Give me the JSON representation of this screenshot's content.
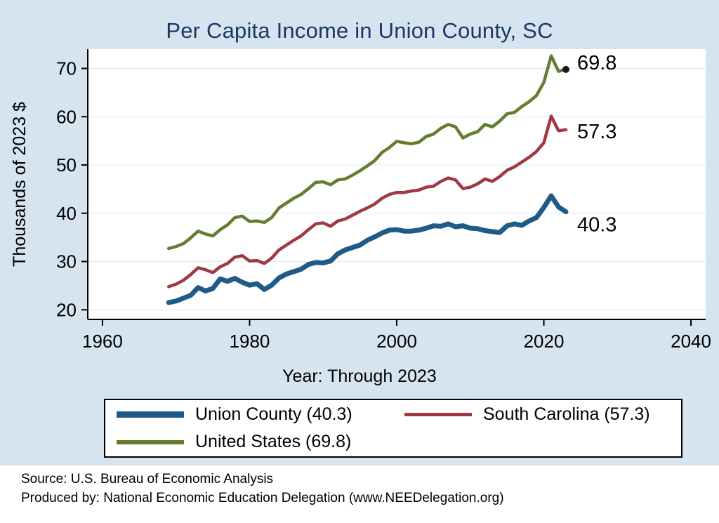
{
  "title": "Per Capita Income in Union County, SC",
  "x_axis_title": "Year: Through 2023",
  "y_axis_title": "Thousands of 2023 $",
  "footer": {
    "source": "Source: U.S. Bureau of Economic Analysis",
    "produced_by": "Produced by: National Economic Education Delegation (www.NEEDelegation.org)"
  },
  "colors": {
    "background": "#d6e4f0",
    "plot_background": "#ffffff",
    "grid": "#e3eaf0",
    "title_text": "#1c3667",
    "union_county": "#1f5b87",
    "south_carolina": "#9d3a42",
    "united_states": "#647d2e"
  },
  "legend": {
    "items": [
      {
        "label": "Union County (40.3)",
        "color": "#1f5b87",
        "thickness": 9
      },
      {
        "label": "South Carolina (57.3)",
        "color": "#9d3a42",
        "thickness": 5
      },
      {
        "label": "United States (69.8)",
        "color": "#647d2e",
        "thickness": 6
      }
    ]
  },
  "chart_data": {
    "type": "line",
    "title": "Per Capita Income in Union County, SC",
    "xlabel": "Year: Through 2023",
    "ylabel": "Thousands of 2023 $",
    "xlim": [
      1958,
      2042
    ],
    "ylim": [
      18,
      74
    ],
    "x_ticks": [
      1960,
      1980,
      2000,
      2020,
      2040
    ],
    "y_ticks": [
      20,
      30,
      40,
      50,
      60,
      70
    ],
    "grid": true,
    "grid_color": "#e3eaf0",
    "legend_position": "bottom",
    "x": [
      1969,
      1970,
      1971,
      1972,
      1973,
      1974,
      1975,
      1976,
      1977,
      1978,
      1979,
      1980,
      1981,
      1982,
      1983,
      1984,
      1985,
      1986,
      1987,
      1988,
      1989,
      1990,
      1991,
      1992,
      1993,
      1994,
      1995,
      1996,
      1997,
      1998,
      1999,
      2000,
      2001,
      2002,
      2003,
      2004,
      2005,
      2006,
      2007,
      2008,
      2009,
      2010,
      2011,
      2012,
      2013,
      2014,
      2015,
      2016,
      2017,
      2018,
      2019,
      2020,
      2021,
      2022,
      2023
    ],
    "series": [
      {
        "id": "union-county",
        "name": "Union County",
        "color": "#1f5b87",
        "width": 7,
        "end_label": "40.3",
        "label_dy": 28,
        "end_marker": false,
        "values": [
          21.5,
          21.8,
          22.4,
          23.0,
          24.6,
          23.9,
          24.4,
          26.4,
          25.9,
          26.5,
          25.7,
          25.1,
          25.4,
          24.2,
          25.1,
          26.6,
          27.4,
          27.9,
          28.4,
          29.4,
          29.8,
          29.7,
          30.1,
          31.6,
          32.4,
          32.9,
          33.4,
          34.4,
          35.1,
          35.9,
          36.5,
          36.6,
          36.3,
          36.3,
          36.5,
          36.9,
          37.4,
          37.3,
          37.8,
          37.2,
          37.4,
          36.9,
          36.8,
          36.4,
          36.2,
          36.0,
          37.4,
          37.8,
          37.5,
          38.4,
          39.1,
          41.2,
          43.6,
          41.3,
          40.3
        ]
      },
      {
        "id": "south-carolina",
        "name": "South Carolina",
        "color": "#9d3a42",
        "width": 4.5,
        "end_label": "57.3",
        "label_dy": 12,
        "end_marker": false,
        "values": [
          24.8,
          25.3,
          26.1,
          27.3,
          28.7,
          28.3,
          27.7,
          28.9,
          29.6,
          30.9,
          31.2,
          30.1,
          30.2,
          29.6,
          30.7,
          32.4,
          33.4,
          34.4,
          35.3,
          36.6,
          37.8,
          38.0,
          37.3,
          38.4,
          38.8,
          39.6,
          40.4,
          41.1,
          41.9,
          43.1,
          43.9,
          44.3,
          44.3,
          44.6,
          44.8,
          45.4,
          45.6,
          46.6,
          47.3,
          46.9,
          45.1,
          45.4,
          46.1,
          47.1,
          46.6,
          47.6,
          48.9,
          49.6,
          50.6,
          51.6,
          52.8,
          54.6,
          60.1,
          57.1,
          57.3
        ]
      },
      {
        "id": "united-states",
        "name": "United States",
        "color": "#647d2e",
        "width": 4.5,
        "end_label": "69.8",
        "label_dy": 0,
        "end_marker": true,
        "values": [
          32.7,
          33.1,
          33.7,
          34.9,
          36.3,
          35.7,
          35.3,
          36.6,
          37.6,
          39.1,
          39.4,
          38.3,
          38.4,
          38.1,
          39.1,
          41.1,
          42.1,
          43.1,
          43.9,
          45.1,
          46.4,
          46.5,
          45.9,
          46.9,
          47.1,
          47.9,
          48.8,
          49.8,
          50.9,
          52.6,
          53.6,
          54.9,
          54.6,
          54.4,
          54.7,
          55.9,
          56.4,
          57.6,
          58.4,
          57.9,
          55.6,
          56.4,
          56.9,
          58.4,
          57.9,
          59.1,
          60.6,
          60.9,
          62.1,
          63.1,
          64.4,
          67.1,
          72.6,
          69.4,
          69.8
        ]
      }
    ]
  }
}
